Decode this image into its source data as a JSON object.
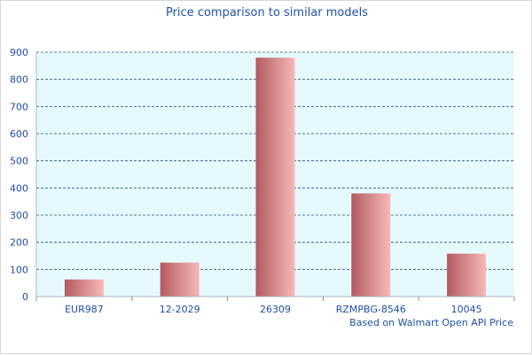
{
  "chart_data": {
    "type": "bar",
    "title": "Price comparison to similar models",
    "categories": [
      "EUR987",
      "12-2029",
      "26309",
      "RZMPBG-8546",
      "10045"
    ],
    "values": [
      63,
      125,
      880,
      380,
      158
    ],
    "ylim": [
      0,
      900
    ],
    "yticks": [
      0,
      100,
      200,
      300,
      400,
      500,
      600,
      700,
      800,
      900
    ],
    "grid": true,
    "xlabel": "",
    "ylabel": "",
    "footnote": "Based on Walmart Open API Price",
    "colors": {
      "plot_background": "#e6fafd",
      "grid": "#2c4a8a",
      "bar_dark": "#b35a5e",
      "bar_light": "#f7b9b9",
      "text": "#1f4fa3"
    }
  }
}
